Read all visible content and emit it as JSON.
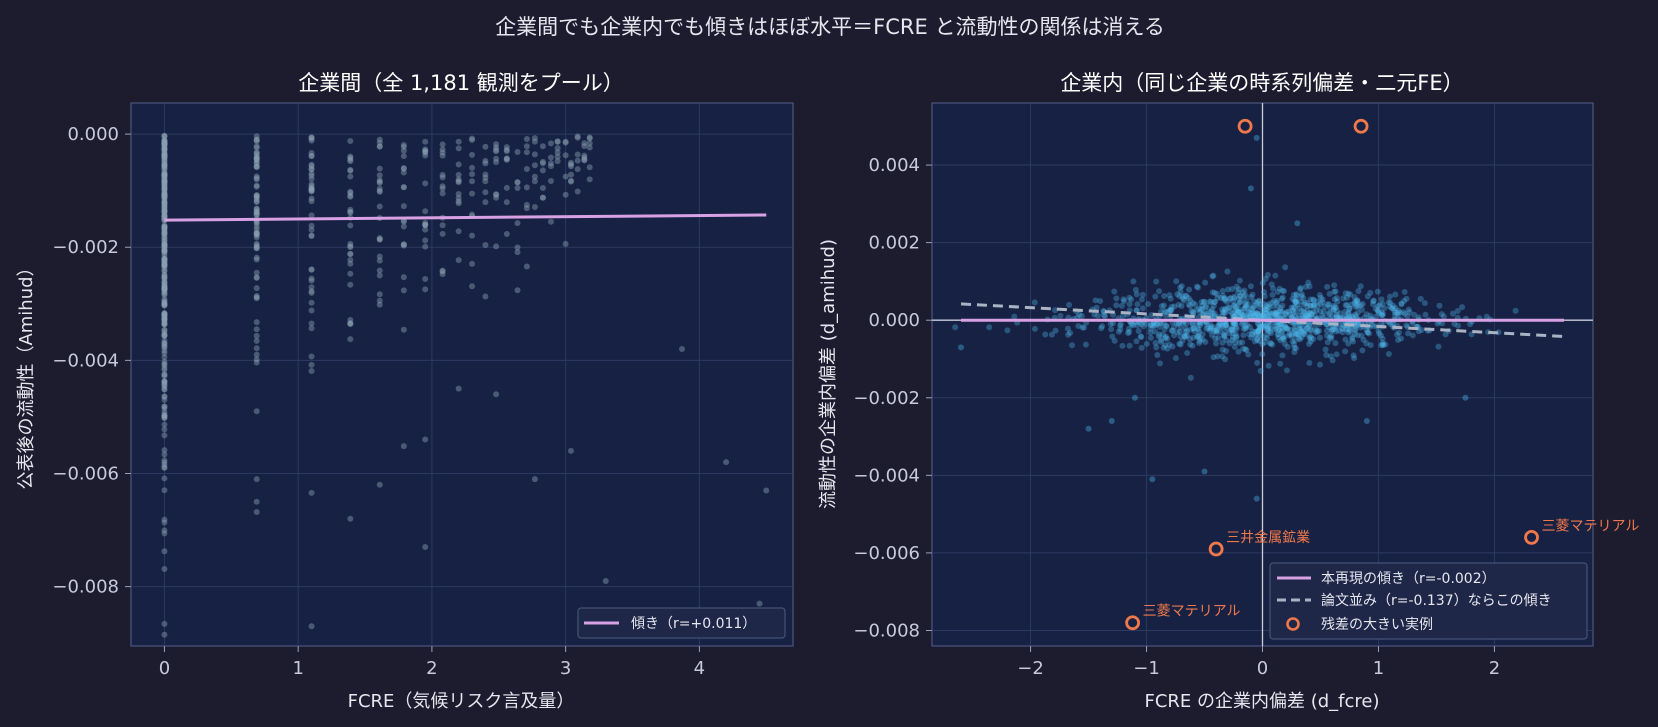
{
  "suptitle": "企業間でも企業内でも傾きはほぼ水平＝FCRE と流動性の関係は消える",
  "colors": {
    "background": "#1d1b2e",
    "axes_face": "#172143",
    "axes_edge": "#4a5780",
    "text": "#e6e6ee",
    "tick_text": "#c7cad8",
    "left_points": "#8a9fb2",
    "right_points": "#4cb7ea",
    "fit_line": "#d7a1e3",
    "paper_line": "#a9b3c4",
    "highlight": "#f0784a",
    "zero_line": "#c8cdd8"
  },
  "chart_data": [
    {
      "type": "scatter",
      "title": "企業間（全 1,181 観測をプール）",
      "xlabel": "FCRE（気候リスク言及量）",
      "ylabel": "公表後の流動性（Amihud）",
      "xlim": [
        -0.25,
        4.7
      ],
      "ylim": [
        -0.00905,
        0.00055
      ],
      "xticks": [
        0,
        1,
        2,
        3,
        4
      ],
      "xtick_labels": [
        "0",
        "1",
        "2",
        "3",
        "4"
      ],
      "yticks": [
        0.0,
        -0.002,
        -0.004,
        -0.006,
        -0.008
      ],
      "ytick_labels": [
        "0.000",
        "−0.002",
        "−0.004",
        "−0.006",
        "−0.008"
      ],
      "grid": true,
      "legend_position": "lower-right",
      "n_observations": 1181,
      "fcre_levels": [
        0,
        0.69,
        1.1,
        1.39,
        1.61,
        1.79,
        1.95,
        2.08,
        2.2,
        2.3,
        2.4,
        2.48,
        2.56,
        2.64,
        2.71,
        2.77,
        2.83,
        2.89,
        2.94,
        3.0,
        3.04,
        3.09,
        3.14,
        3.18
      ],
      "outliers": [
        [
          0.69,
          -0.0049
        ],
        [
          0.69,
          -0.0061
        ],
        [
          0.69,
          -0.0065
        ],
        [
          1.1,
          -0.0087
        ],
        [
          1.39,
          -0.0068
        ],
        [
          1.61,
          -0.0062
        ],
        [
          1.95,
          -0.0073
        ],
        [
          1.95,
          -0.0054
        ],
        [
          2.2,
          -0.0045
        ],
        [
          2.48,
          -0.0046
        ],
        [
          2.77,
          -0.0061
        ],
        [
          3.04,
          -0.0056
        ],
        [
          3.3,
          -0.0079
        ],
        [
          3.87,
          -0.0038
        ],
        [
          4.2,
          -0.0058
        ],
        [
          4.5,
          -0.0063
        ],
        [
          4.45,
          -0.0083
        ]
      ],
      "fit_line": {
        "label": "傾き（r=+0.011）",
        "x": [
          0,
          4.5
        ],
        "y": [
          -0.00152,
          -0.00143
        ]
      }
    },
    {
      "type": "scatter",
      "title": "企業内（同じ企業の時系列偏差・二元FE）",
      "xlabel": "FCRE の企業内偏差 (d_fcre)",
      "ylabel": "流動性の企業内偏差 (d_amihud)",
      "xlim": [
        -2.85,
        2.85
      ],
      "ylim": [
        -0.0084,
        0.0056
      ],
      "xticks": [
        -2,
        -1,
        0,
        1,
        2
      ],
      "xtick_labels": [
        "−2",
        "−1",
        "0",
        "1",
        "2"
      ],
      "yticks": [
        0.004,
        0.002,
        0.0,
        -0.002,
        -0.004,
        -0.006,
        -0.008
      ],
      "ytick_labels": [
        "0.004",
        "0.002",
        "0.000",
        "−0.002",
        "−0.004",
        "−0.006",
        "−0.008"
      ],
      "grid": true,
      "legend_position": "lower-right",
      "fit_line": {
        "label": "本再現の傾き（r=-0.002）",
        "x": [
          -2.6,
          2.6
        ],
        "y": [
          0.0,
          0.0
        ]
      },
      "paper_line": {
        "label": "論文並み（r=-0.137）ならこの傾き",
        "x": [
          -2.6,
          2.6
        ],
        "y": [
          0.00042,
          -0.00042
        ]
      },
      "highlight_legend": "残差の大きい実例",
      "highlighted": [
        {
          "x": -0.15,
          "y": 0.005,
          "label": ""
        },
        {
          "x": 0.85,
          "y": 0.005,
          "label": ""
        },
        {
          "x": 2.32,
          "y": -0.0056,
          "label": "三菱マテリアル"
        },
        {
          "x": -0.4,
          "y": -0.0059,
          "label": "三井金属鉱業"
        },
        {
          "x": -1.12,
          "y": -0.0078,
          "label": "三菱マテリアル"
        }
      ],
      "outliers": [
        [
          -0.05,
          0.0047
        ],
        [
          -0.1,
          0.0034
        ],
        [
          0.3,
          0.0025
        ],
        [
          -1.1,
          -0.002
        ],
        [
          -1.3,
          -0.0026
        ],
        [
          -1.5,
          -0.0028
        ],
        [
          -0.5,
          -0.0039
        ],
        [
          -0.95,
          -0.0041
        ],
        [
          -0.05,
          -0.0046
        ],
        [
          0.9,
          -0.0026
        ],
        [
          1.75,
          -0.002
        ],
        [
          -2.6,
          -0.0007
        ]
      ]
    }
  ]
}
